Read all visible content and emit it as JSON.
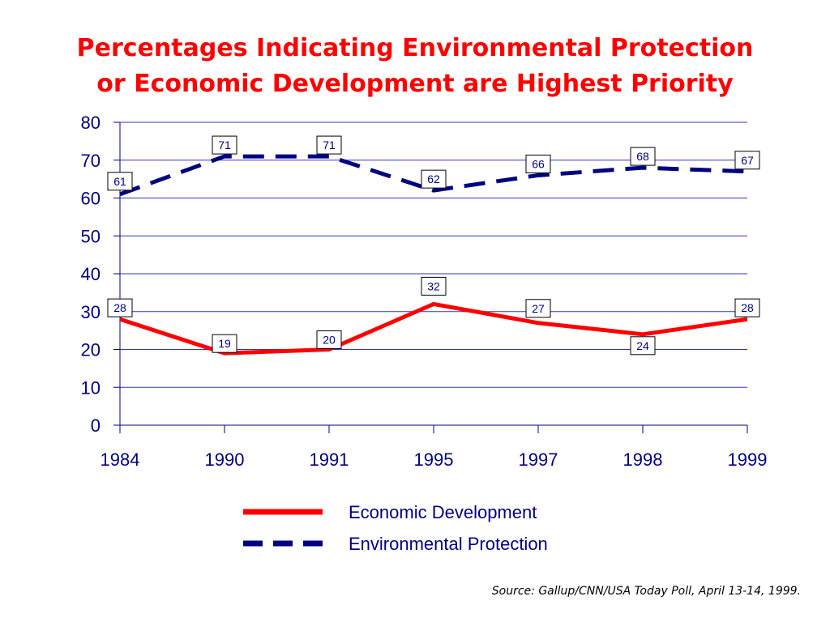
{
  "chart_data": {
    "type": "line",
    "title_lines": [
      "Percentages Indicating Environmental Protection",
      "or Economic Development are Highest Priority"
    ],
    "categories": [
      "1984",
      "1990",
      "1991",
      "1995",
      "1997",
      "1998",
      "1999"
    ],
    "ylim": [
      0,
      80
    ],
    "yticks": [
      0,
      10,
      20,
      30,
      40,
      50,
      60,
      70,
      80
    ],
    "grid": true,
    "legend_position": "bottom",
    "series": [
      {
        "name": "Economic Development",
        "values": [
          28,
          19,
          20,
          32,
          27,
          24,
          28
        ],
        "color": "#ff0000",
        "style": "solid"
      },
      {
        "name": "Environmental Protection",
        "values": [
          61,
          71,
          71,
          62,
          66,
          68,
          67
        ],
        "color": "#000080",
        "style": "dashed"
      }
    ],
    "source": "Source: Gallup/CNN/USA Today Poll, April 13-14, 1999.",
    "colors": {
      "title": "#ff0000",
      "axis": "#000080",
      "grid": "#3333cc"
    }
  }
}
